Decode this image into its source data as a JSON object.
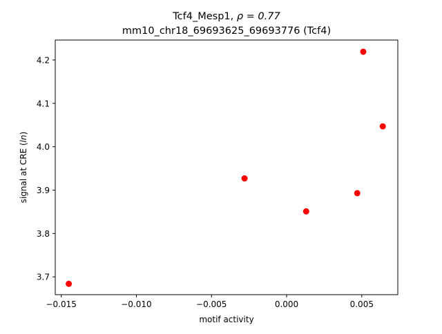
{
  "chart_data": {
    "type": "scatter",
    "title_line1_prefix": "Tcf4_Mesp1, ",
    "title_line1_math": "ρ = 0.77",
    "title_line2": "mm10_chr18_69693625_69693776 (Tcf4)",
    "xlabel": "motif activity",
    "ylabel_prefix": "signal at CRE (",
    "ylabel_math": "ln",
    "ylabel_suffix": ")",
    "xlim": [
      -0.0154,
      0.0074
    ],
    "ylim": [
      3.659,
      4.246
    ],
    "x_ticks": [
      -0.015,
      -0.01,
      -0.005,
      0.0,
      0.005
    ],
    "x_tick_labels": [
      "−0.015",
      "−0.010",
      "−0.005",
      "0.000",
      "0.005"
    ],
    "y_ticks": [
      3.7,
      3.8,
      3.9,
      4.0,
      4.1,
      4.2
    ],
    "y_tick_labels": [
      "3.7",
      "3.8",
      "3.9",
      "4.0",
      "4.1",
      "4.2"
    ],
    "grid": false,
    "legend": "none",
    "marker_color": "#ff0000",
    "points": [
      {
        "x": -0.0145,
        "y": 3.684
      },
      {
        "x": -0.0028,
        "y": 3.927
      },
      {
        "x": 0.0013,
        "y": 3.851
      },
      {
        "x": 0.0047,
        "y": 3.893
      },
      {
        "x": 0.0051,
        "y": 4.219
      },
      {
        "x": 0.0064,
        "y": 4.047
      }
    ]
  }
}
